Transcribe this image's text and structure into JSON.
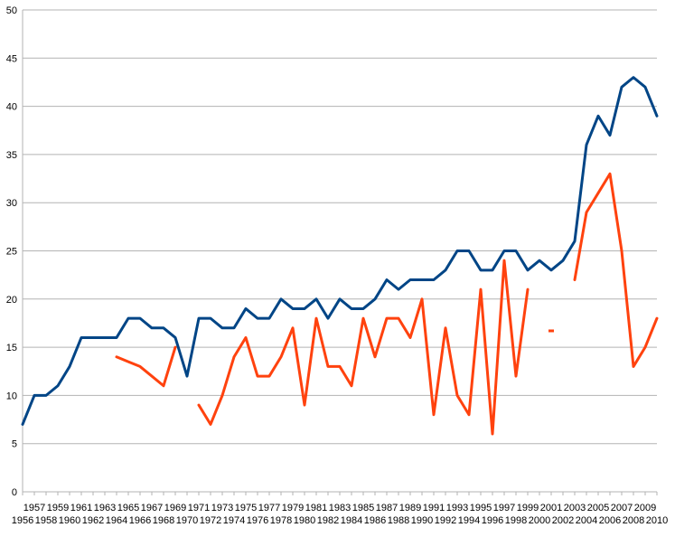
{
  "chart_data": {
    "type": "line",
    "title": "",
    "xlabel": "",
    "ylabel": "",
    "ylim": [
      0,
      50
    ],
    "y_ticks": [
      0,
      5,
      10,
      15,
      20,
      25,
      30,
      35,
      40,
      45,
      50
    ],
    "grid": true,
    "legend": "none",
    "categories": [
      1956,
      1957,
      1958,
      1959,
      1960,
      1961,
      1962,
      1963,
      1964,
      1965,
      1966,
      1967,
      1968,
      1969,
      1970,
      1971,
      1972,
      1973,
      1974,
      1975,
      1976,
      1977,
      1978,
      1979,
      1980,
      1981,
      1982,
      1983,
      1984,
      1985,
      1986,
      1987,
      1988,
      1989,
      1990,
      1991,
      1992,
      1993,
      1994,
      1995,
      1996,
      1997,
      1998,
      1999,
      2000,
      2001,
      2002,
      2003,
      2004,
      2005,
      2006,
      2007,
      2008,
      2009,
      2010
    ],
    "series": [
      {
        "color": "#004586",
        "values": [
          7,
          10,
          10,
          11,
          13,
          16,
          16,
          16,
          16,
          18,
          18,
          17,
          17,
          16,
          12,
          18,
          18,
          17,
          17,
          19,
          18,
          18,
          20,
          19,
          19,
          20,
          18,
          20,
          19,
          19,
          20,
          22,
          21,
          22,
          22,
          22,
          23,
          25,
          25,
          23,
          23,
          25,
          25,
          23,
          24,
          23,
          24,
          26,
          36,
          39,
          37,
          42,
          43,
          42,
          39
        ]
      },
      {
        "color": "#ff420e",
        "values": [
          null,
          null,
          null,
          null,
          null,
          null,
          null,
          null,
          14,
          13.5,
          13,
          12,
          11,
          15,
          null,
          9,
          7,
          10,
          14,
          16,
          12,
          12,
          14,
          17,
          9,
          18,
          13,
          13,
          11,
          18,
          14,
          18,
          18,
          16,
          20,
          8,
          17,
          10,
          8,
          21,
          6,
          24,
          12,
          21,
          null,
          16.7,
          null,
          22,
          29,
          31,
          33,
          25,
          13,
          15,
          18
        ]
      }
    ]
  }
}
